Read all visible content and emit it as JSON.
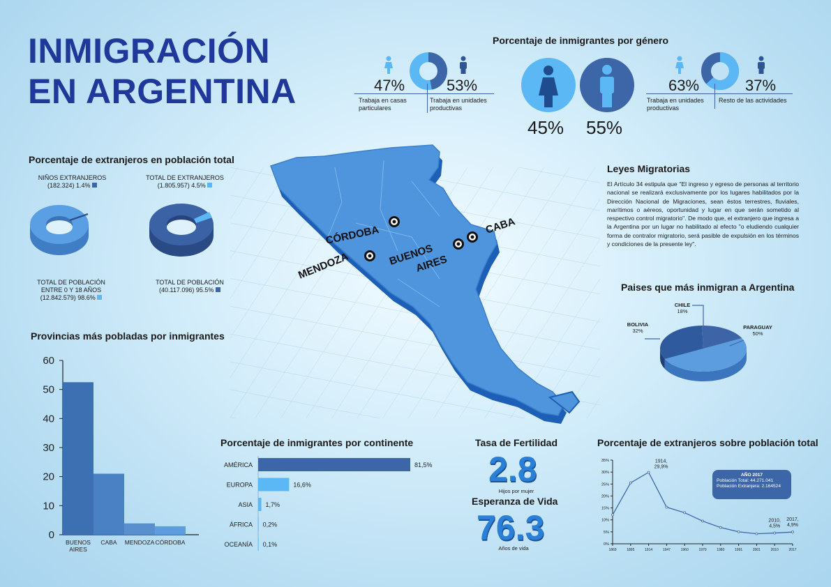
{
  "title": {
    "line1": "INMIGRACIÓN",
    "line2": "EN ARGENTINA"
  },
  "colors": {
    "dark_blue": "#3d66a8",
    "mid_blue": "#4f86c8",
    "light_blue": "#5bb8f5",
    "title_blue": "#1f3899",
    "person_blue": "#4a8fe0"
  },
  "gender": {
    "title": "Porcentaje de inmigrantes por género",
    "female": {
      "pct": "45%",
      "icon": "female-person-icon"
    },
    "male": {
      "pct": "55%",
      "icon": "male-person-icon"
    },
    "left_split": {
      "a_pct": "47%",
      "a_label": "Trabaja en casas particulares",
      "b_pct": "53%",
      "b_label": "Trabaja en unidades productivas",
      "a_value": 47
    },
    "right_split": {
      "a_pct": "63%",
      "a_label": "Trabaja en unidades productivas",
      "b_pct": "37%",
      "b_label": "Resto de las actividades",
      "a_value": 63
    }
  },
  "foreigners_total": {
    "title": "Porcentaje de extranjeros en población total",
    "left": {
      "top_label": "NIÑOS EXTRANJEROS",
      "top_value": "(182.324) 1.4%",
      "bottom_label_1": "TOTAL DE POBLACIÓN",
      "bottom_label_2": "ENTRE 0 Y 18 AÑOS",
      "bottom_value": "(12.842.579) 98.6%",
      "highlight_pct": 1.4
    },
    "right": {
      "top_label": "TOTAL DE EXTRANJEROS",
      "top_value": "(1.805.957) 4.5%",
      "bottom_label": "TOTAL DE POBLACIÓN",
      "bottom_value": "(40.117.096) 95.5%",
      "highlight_pct": 4.5
    }
  },
  "map": {
    "labels": {
      "cordoba": "CÓRDOBA",
      "mendoza": "MENDOZA",
      "buenos": "BUENOS",
      "aires": "AIRES",
      "caba": "CABA"
    }
  },
  "laws": {
    "title": "Leyes Migratorias",
    "text": "El Artículo 34 estipula que \"El ingreso y egreso de personas al territorio nacional se realizará exclusivamente por los lugares habilitados por la Dirección Nacional de Migraciones, sean éstos terrestres, fluviales, marítimos o aéreos, oportunidad y lugar en que serán sometido al respectivo control migratorio\". De modo que, el extranjero que ingresa a la Argentina por un lugar no habilitado al efecto \"o eludiendo cualquier forma de contralor migratorio, será pasible de expulsión en los términos y condiciones de la presente ley\"."
  },
  "fertility": {
    "title": "Tasa de Fertilidad",
    "value": "2.8",
    "caption": "Hijos por mujer",
    "life_title": "Esperanza de Vida",
    "life_value": "76.3",
    "life_caption": "Años de vida"
  },
  "chart_data": [
    {
      "id": "provinces",
      "type": "bar",
      "title": "Provincias más pobladas por inmigrantes",
      "categories": [
        "BUENOS AIRES",
        "CABA",
        "MENDOZA",
        "CÓRDOBA"
      ],
      "category_lines": [
        [
          "BUENOS",
          "AIRES"
        ],
        [
          "CABA"
        ],
        [
          "MENDOZA"
        ],
        [
          "CÓRDOBA"
        ]
      ],
      "values": [
        52.5,
        21,
        3.9,
        2.9
      ],
      "ylim": [
        0,
        60
      ],
      "yticks": [
        0,
        10,
        20,
        30,
        40,
        50,
        60
      ],
      "colors": [
        "#3d6fb3",
        "#4a81c5",
        "#5a8fcf",
        "#5b9de0"
      ]
    },
    {
      "id": "continents",
      "type": "bar",
      "orientation": "horizontal",
      "title": "Porcentaje de inmigrantes por continente",
      "categories": [
        "AMÉRICA",
        "EUROPA",
        "ASIA",
        "ÁFRICA",
        "OCEANÍA"
      ],
      "values": [
        81.5,
        16.6,
        1.7,
        0.2,
        0.1
      ],
      "value_labels": [
        "81,5%",
        "16,6%",
        "1,7%",
        "0,2%",
        "0,1%"
      ],
      "xlim": [
        0,
        81.5
      ],
      "colors": [
        "#3d66a8",
        "#5bb8f5",
        "#5bb8f5",
        "#5bb8f5",
        "#5bb8f5"
      ]
    },
    {
      "id": "countries",
      "type": "pie",
      "title": "Paises que más inmigran a Argentina",
      "labels": [
        "PARAGUAY",
        "BOLIVIA",
        "CHILE"
      ],
      "values": [
        50,
        32,
        18
      ],
      "value_labels": [
        "50%",
        "32%",
        "18%"
      ],
      "colors": [
        "#5b9ddf",
        "#2f5a9e",
        "#3d64a6"
      ]
    },
    {
      "id": "foreign_timeline",
      "type": "line",
      "title": "Porcentaje de extranjeros sobre población total",
      "x": [
        "1869",
        "1895",
        "1914",
        "1947",
        "1960",
        "1970",
        "1980",
        "1991",
        "2001",
        "2010",
        "2017"
      ],
      "values": [
        12.1,
        25.5,
        29.9,
        15.3,
        13,
        9.5,
        6.8,
        5,
        4.2,
        4.5,
        4.9
      ],
      "ylim": [
        0,
        35
      ],
      "yticks": [
        "0%",
        "5%",
        "10%",
        "15%",
        "20%",
        "25%",
        "30%",
        "35%"
      ],
      "annotations": [
        {
          "line1": "1914,",
          "line2": "29,9%"
        },
        {
          "line1": "2010,",
          "line2": "4,5%"
        },
        {
          "line1": "2017,",
          "line2": "4,9%"
        }
      ],
      "info_box": {
        "title": "AÑO 2017",
        "line1": "Población Total: 44.271.041",
        "line2": "Población Extranjera: 2.164524"
      }
    }
  ]
}
